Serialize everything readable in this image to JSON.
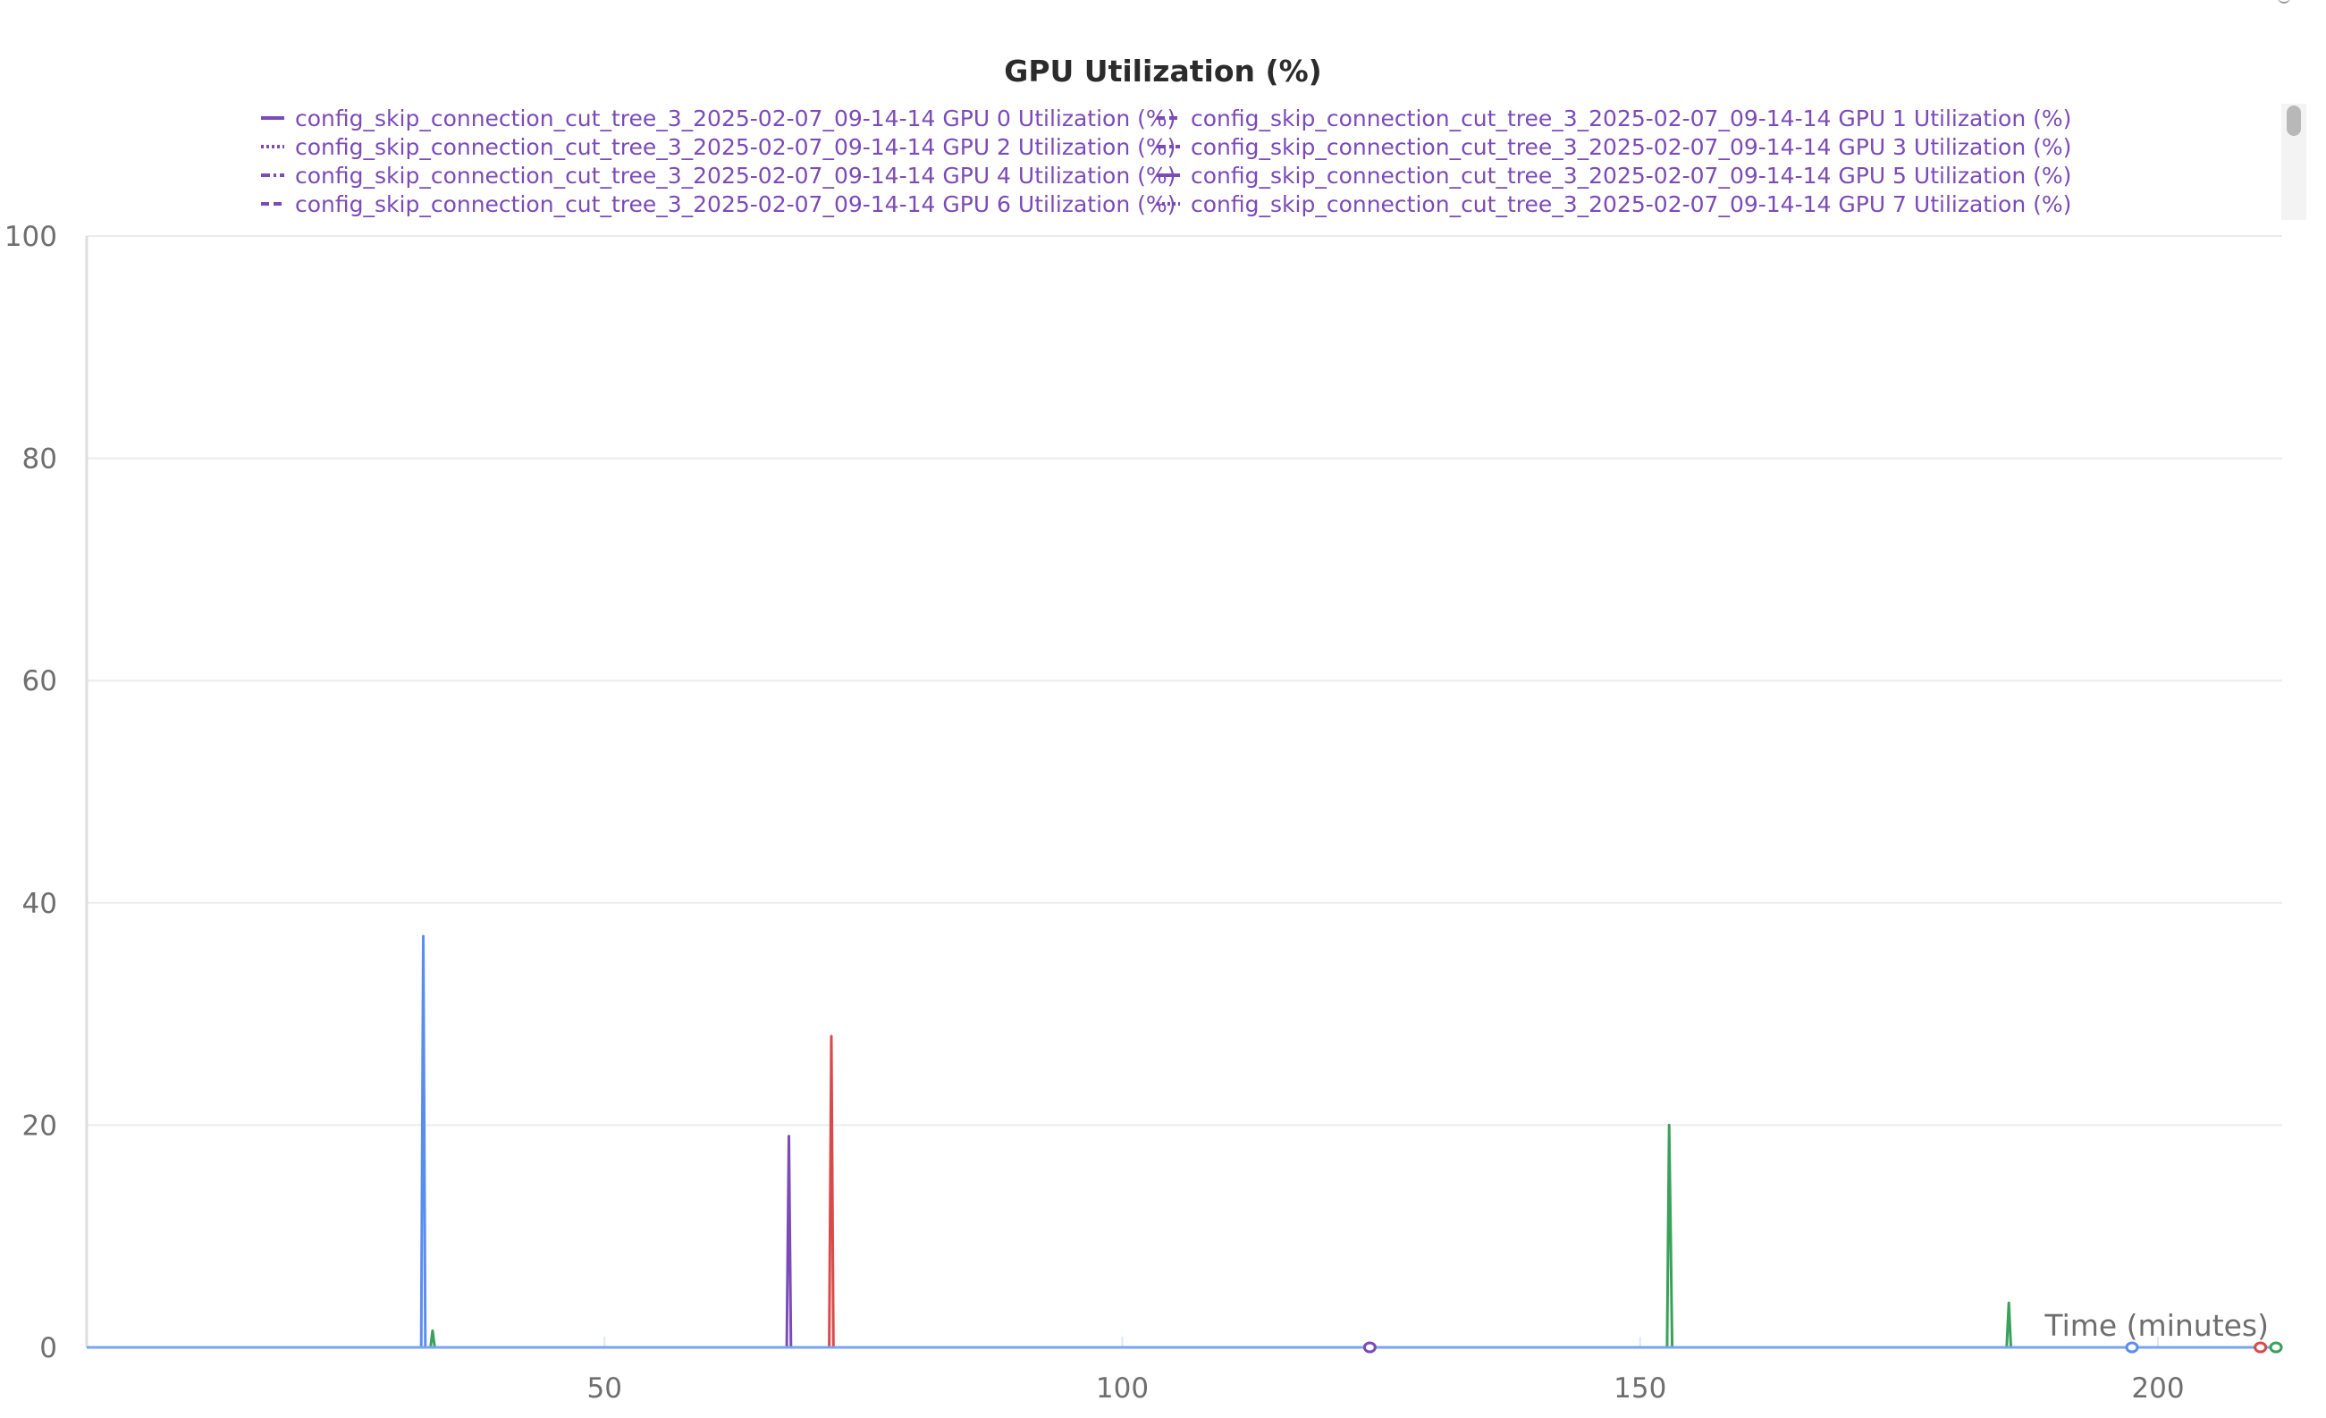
{
  "chart_data": {
    "type": "line",
    "title": "GPU Utilization (%)",
    "xlabel": "Time (minutes)",
    "ylabel": "",
    "xlim": [
      0,
      212
    ],
    "ylim": [
      0,
      100
    ],
    "x_ticks": [
      50,
      100,
      150,
      200
    ],
    "y_ticks": [
      0,
      20,
      40,
      60,
      80,
      100
    ],
    "grid": true,
    "legend_position": "top",
    "legend_entries": [
      {
        "name": "config_skip_connection_cut_tree_3_2025-02-07_09-14-14 GPU 0 Utilization (%)",
        "dash": "solid"
      },
      {
        "name": "config_skip_connection_cut_tree_3_2025-02-07_09-14-14 GPU 1 Utilization (%)",
        "dash": "dashed"
      },
      {
        "name": "config_skip_connection_cut_tree_3_2025-02-07_09-14-14 GPU 2 Utilization (%)",
        "dash": "dotted"
      },
      {
        "name": "config_skip_connection_cut_tree_3_2025-02-07_09-14-14 GPU 3 Utilization (%)",
        "dash": "dashdot"
      },
      {
        "name": "config_skip_connection_cut_tree_3_2025-02-07_09-14-14 GPU 4 Utilization (%)",
        "dash": "dashdot"
      },
      {
        "name": "config_skip_connection_cut_tree_3_2025-02-07_09-14-14 GPU 5 Utilization (%)",
        "dash": "solid"
      },
      {
        "name": "config_skip_connection_cut_tree_3_2025-02-07_09-14-14 GPU 6 Utilization (%)",
        "dash": "dashed"
      },
      {
        "name": "config_skip_connection_cut_tree_3_2025-02-07_09-14-14 GPU 7 Utilization (%)",
        "dash": "dotted"
      }
    ],
    "legend_color": "#7b4bb8",
    "series": [
      {
        "color": "#5b8def",
        "x": [
          0,
          32.3,
          32.5,
          32.7,
          212
        ],
        "y": [
          0,
          0,
          37,
          0,
          0
        ]
      },
      {
        "color": "#3aa15a",
        "x": [
          0,
          33.2,
          33.4,
          33.6,
          212
        ],
        "y": [
          0,
          0,
          1.5,
          0,
          0
        ]
      },
      {
        "color": "#7b4bb8",
        "x": [
          0,
          67.6,
          67.8,
          68.0,
          212
        ],
        "y": [
          0,
          0,
          19,
          0,
          0
        ]
      },
      {
        "color": "#d94b4b",
        "x": [
          0,
          71.7,
          71.9,
          72.1,
          212
        ],
        "y": [
          0,
          0,
          28,
          0,
          0
        ]
      },
      {
        "color": "#3aa15a",
        "x": [
          0,
          152.6,
          152.8,
          153.1,
          212
        ],
        "y": [
          0,
          0,
          20,
          0,
          0
        ]
      },
      {
        "color": "#3aa15a",
        "x": [
          0,
          185.4,
          185.6,
          185.8,
          212
        ],
        "y": [
          0,
          0,
          4,
          0,
          0
        ]
      },
      {
        "color": "#d94b4b",
        "x": [
          197,
          212
        ],
        "y": [
          0,
          0
        ]
      }
    ],
    "markers": [
      {
        "x": 123.9,
        "y": 0,
        "color": "#7b4bb8"
      },
      {
        "x": 197.5,
        "y": 0,
        "color": "#5b8def"
      },
      {
        "x": 209.9,
        "y": 0,
        "color": "#d94b4b"
      },
      {
        "x": 211.4,
        "y": 0,
        "color": "#3aa15a"
      }
    ]
  }
}
